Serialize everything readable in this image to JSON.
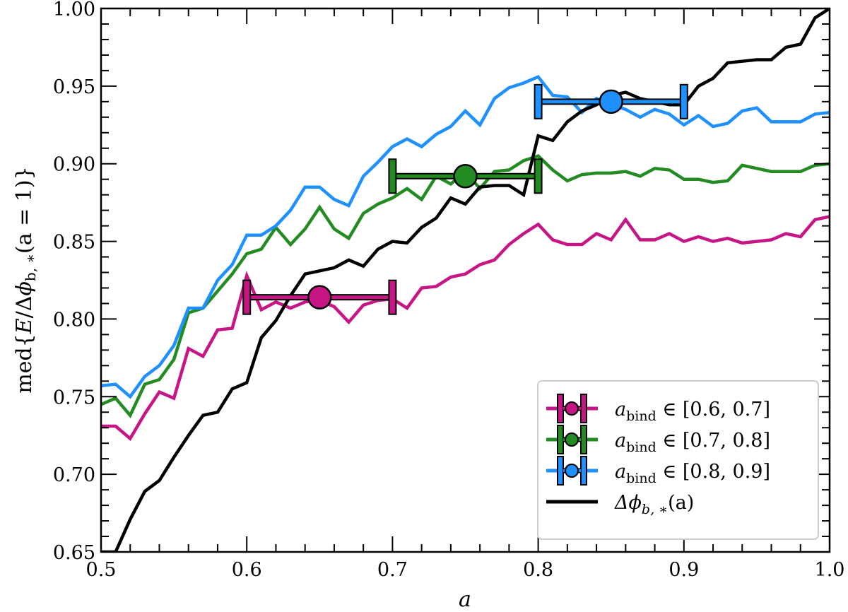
{
  "chart_data": {
    "type": "line",
    "title": "",
    "xlabel": "a",
    "ylabel": "med{E/Δφ_b,*(a = 1)}",
    "xlim": [
      0.5,
      1.0
    ],
    "ylim": [
      0.65,
      1.0
    ],
    "x_ticks": [
      "0.5",
      "0.6",
      "0.7",
      "0.8",
      "0.9",
      "1.0"
    ],
    "y_ticks": [
      "0.65",
      "0.70",
      "0.75",
      "0.80",
      "0.85",
      "0.90",
      "0.95",
      "1.00"
    ],
    "grid": false,
    "legend_position": "lower right",
    "x": [
      0.5,
      0.51,
      0.52,
      0.53,
      0.54,
      0.55,
      0.56,
      0.57,
      0.58,
      0.59,
      0.6,
      0.61,
      0.62,
      0.63,
      0.64,
      0.65,
      0.66,
      0.67,
      0.68,
      0.69,
      0.7,
      0.71,
      0.72,
      0.73,
      0.74,
      0.75,
      0.76,
      0.77,
      0.78,
      0.79,
      0.8,
      0.81,
      0.82,
      0.83,
      0.84,
      0.85,
      0.86,
      0.87,
      0.88,
      0.89,
      0.9,
      0.91,
      0.92,
      0.93,
      0.94,
      0.95,
      0.96,
      0.97,
      0.98,
      0.99,
      1.0
    ],
    "series": [
      {
        "name": "a_bind ∈ [0.6, 0.7]",
        "color": "#c71585",
        "values": [
          0.731,
          0.731,
          0.723,
          0.739,
          0.753,
          0.749,
          0.781,
          0.776,
          0.793,
          0.794,
          0.828,
          0.806,
          0.811,
          0.807,
          0.811,
          0.812,
          0.808,
          0.798,
          0.809,
          0.812,
          0.813,
          0.807,
          0.82,
          0.821,
          0.827,
          0.829,
          0.835,
          0.838,
          0.848,
          0.855,
          0.861,
          0.851,
          0.848,
          0.848,
          0.855,
          0.851,
          0.864,
          0.851,
          0.851,
          0.855,
          0.85,
          0.853,
          0.85,
          0.852,
          0.849,
          0.85,
          0.851,
          0.855,
          0.853,
          0.864,
          0.866
        ],
        "errorbar": {
          "x": 0.65,
          "y": 0.814,
          "xerr_low": 0.6,
          "xerr_high": 0.7
        }
      },
      {
        "name": "a_bind ∈ [0.7, 0.8]",
        "color": "#228b22",
        "values": [
          0.745,
          0.749,
          0.738,
          0.758,
          0.761,
          0.774,
          0.804,
          0.807,
          0.818,
          0.829,
          0.842,
          0.845,
          0.859,
          0.848,
          0.858,
          0.872,
          0.858,
          0.852,
          0.868,
          0.874,
          0.878,
          0.884,
          0.877,
          0.892,
          0.887,
          0.895,
          0.884,
          0.895,
          0.896,
          0.902,
          0.905,
          0.896,
          0.889,
          0.893,
          0.894,
          0.894,
          0.895,
          0.892,
          0.897,
          0.896,
          0.89,
          0.89,
          0.888,
          0.889,
          0.899,
          0.897,
          0.895,
          0.895,
          0.895,
          0.899,
          0.9
        ],
        "errorbar": {
          "x": 0.75,
          "y": 0.892,
          "xerr_low": 0.7,
          "xerr_high": 0.8
        }
      },
      {
        "name": "a_bind ∈ [0.8, 0.9]",
        "color": "#1e90ff",
        "values": [
          0.757,
          0.758,
          0.75,
          0.763,
          0.77,
          0.783,
          0.807,
          0.807,
          0.825,
          0.835,
          0.854,
          0.854,
          0.86,
          0.87,
          0.885,
          0.885,
          0.877,
          0.873,
          0.892,
          0.901,
          0.911,
          0.916,
          0.911,
          0.919,
          0.924,
          0.934,
          0.925,
          0.942,
          0.949,
          0.952,
          0.956,
          0.944,
          0.943,
          0.933,
          0.942,
          0.938,
          0.935,
          0.93,
          0.935,
          0.932,
          0.925,
          0.931,
          0.924,
          0.926,
          0.934,
          0.936,
          0.927,
          0.927,
          0.927,
          0.932,
          0.933
        ],
        "errorbar": {
          "x": 0.85,
          "y": 0.94,
          "xerr_low": 0.8,
          "xerr_high": 0.9
        }
      },
      {
        "name": "Δφ_b,*(a)",
        "color": "#000000",
        "values": [
          0.65,
          0.65,
          0.671,
          0.689,
          0.696,
          0.711,
          0.725,
          0.738,
          0.74,
          0.755,
          0.759,
          0.788,
          0.799,
          0.815,
          0.829,
          0.831,
          0.833,
          0.838,
          0.834,
          0.845,
          0.85,
          0.849,
          0.859,
          0.865,
          0.878,
          0.874,
          0.885,
          0.886,
          0.886,
          0.88,
          0.918,
          0.915,
          0.927,
          0.934,
          0.938,
          0.944,
          0.946,
          0.942,
          0.94,
          0.938,
          0.938,
          0.95,
          0.955,
          0.965,
          0.966,
          0.967,
          0.967,
          0.975,
          0.977,
          0.994,
          0.988
        ],
        "final_value": 1.0
      }
    ]
  },
  "axes": {
    "xlabel": "a",
    "ylabel_parts": {
      "pre": "med{",
      "E": "E",
      "slash": "/Δ",
      "phi": "ϕ",
      "sub": "b, ∗",
      "post": "(a = 1)}"
    }
  },
  "legend": {
    "items": [
      {
        "prefix": "a",
        "sub": "bind",
        "suffix": " ∈ [0.6, 0.7]",
        "color": "#c71585"
      },
      {
        "prefix": "a",
        "sub": "bind",
        "suffix": " ∈ [0.7, 0.8]",
        "color": "#228b22"
      },
      {
        "prefix": "a",
        "sub": "bind",
        "suffix": " ∈ [0.8, 0.9]",
        "color": "#1e90ff"
      },
      {
        "prefix": "Δϕ",
        "sub": "b, ∗",
        "suffix": "(a)",
        "color": "#000000"
      }
    ]
  }
}
